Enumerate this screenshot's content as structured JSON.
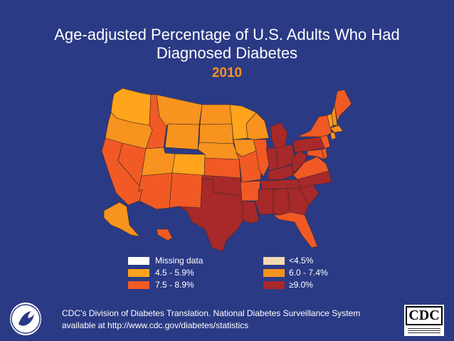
{
  "title": {
    "line1": "Age-adjusted Percentage of U.S. Adults Who Had",
    "line2": "Diagnosed Diabetes",
    "year": "2010"
  },
  "legend": [
    {
      "label": "Missing data",
      "color": "#ffffff"
    },
    {
      "label": "4.5 - 5.9%",
      "color": "#ffa41c"
    },
    {
      "label": "7.5 - 8.9%",
      "color": "#f15a24"
    },
    {
      "label": "<4.5%",
      "color": "#f3d9b0"
    },
    {
      "label": "6.0 - 7.4%",
      "color": "#f7931e"
    },
    {
      "label": "≥9.0%",
      "color": "#a7292a"
    }
  ],
  "states": {
    "WA": "#ffa41c",
    "OR": "#f7931e",
    "CA": "#f15a24",
    "ID": "#f15a24",
    "NV": "#f15a24",
    "MT": "#f7931e",
    "WY": "#f7931e",
    "UT": "#f7931e",
    "AZ": "#f15a24",
    "CO": "#ffa41c",
    "NM": "#f15a24",
    "ND": "#f7931e",
    "SD": "#f7931e",
    "NE": "#f7931e",
    "KS": "#f15a24",
    "OK": "#a7292a",
    "TX": "#a7292a",
    "MN": "#ffa41c",
    "IA": "#f7931e",
    "MO": "#f15a24",
    "AR": "#f15a24",
    "LA": "#a7292a",
    "WI": "#f7931e",
    "IL": "#f15a24",
    "MI": "#a7292a",
    "IN": "#a7292a",
    "OH": "#a7292a",
    "KY": "#a7292a",
    "TN": "#a7292a",
    "MS": "#a7292a",
    "AL": "#a7292a",
    "GA": "#a7292a",
    "FL": "#f15a24",
    "SC": "#a7292a",
    "NC": "#a7292a",
    "VA": "#f15a24",
    "WV": "#a7292a",
    "PA": "#a7292a",
    "NY": "#f15a24",
    "VT": "#ffa41c",
    "NH": "#f7931e",
    "ME": "#f15a24",
    "MA": "#f7931e",
    "CT": "#f7931e",
    "NJ": "#f15a24",
    "DE": "#f15a24",
    "MD": "#f15a24",
    "AK": "#f7931e",
    "HI": "#f15a24"
  },
  "footer": {
    "line1": "CDC’s Division of Diabetes Translation.  National Diabetes Surveillance System",
    "line2": "available at http://www.cdc.gov/diabetes/statistics"
  },
  "logos": {
    "cdc": "CDC"
  }
}
